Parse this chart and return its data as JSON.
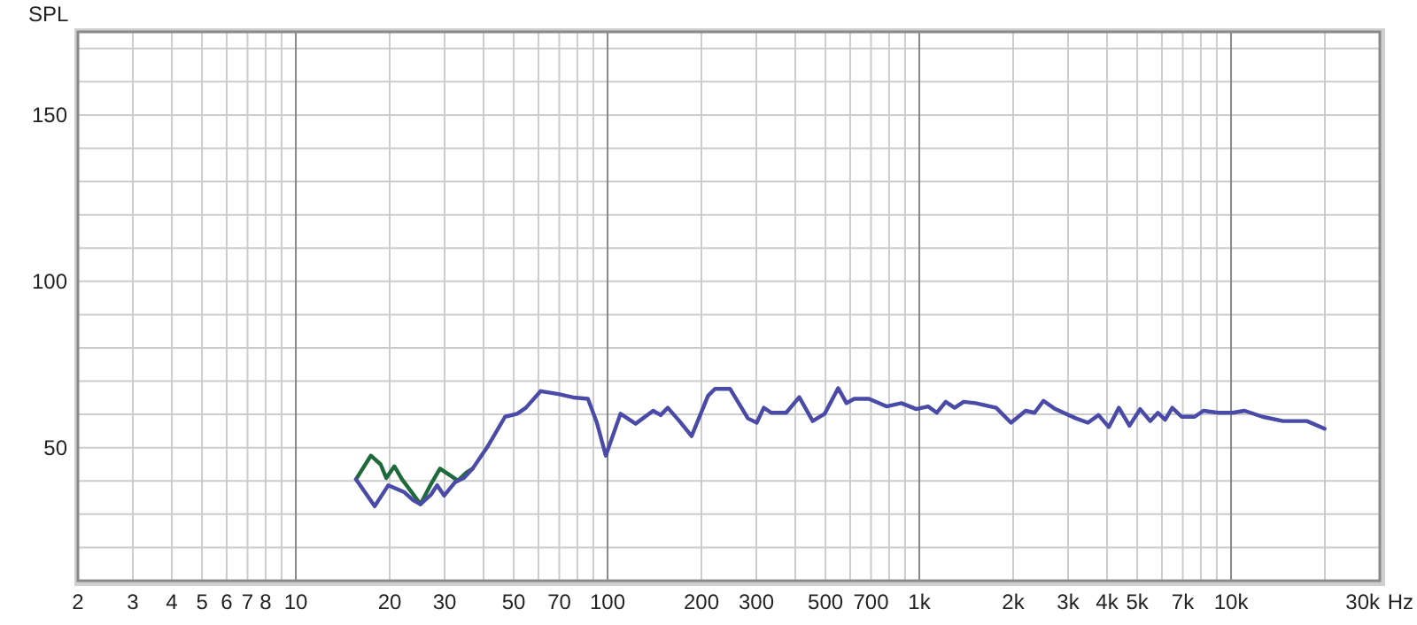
{
  "chart_data": {
    "type": "line",
    "ylabel": "SPL",
    "log": "x",
    "grid": true,
    "xlabel": "Hz",
    "marker": "none",
    "line_style": "solid",
    "xlim": [
      2,
      30000
    ],
    "ylim": [
      10,
      175
    ],
    "xticks": [
      2,
      3,
      4,
      5,
      6,
      7,
      8,
      {
        "value": 9,
        "label": null
      },
      10,
      20,
      30,
      {
        "value": 40,
        "label": null
      },
      50,
      {
        "value": 60,
        "label": null
      },
      70,
      {
        "value": 80,
        "label": null
      },
      {
        "value": 90,
        "label": null
      },
      100,
      200,
      300,
      {
        "value": 400,
        "label": null
      },
      500,
      {
        "value": 600,
        "label": null
      },
      700,
      {
        "value": 800,
        "label": null
      },
      {
        "value": 900,
        "label": null
      },
      {
        "value": 1000,
        "label": "1k"
      },
      {
        "value": 2000,
        "label": "2k"
      },
      {
        "value": 3000,
        "label": "3k"
      },
      {
        "value": 4000,
        "label": "4k"
      },
      {
        "value": 5000,
        "label": "5k"
      },
      {
        "value": 6000,
        "label": null
      },
      {
        "value": 7000,
        "label": "7k"
      },
      {
        "value": 8000,
        "label": null
      },
      {
        "value": 9000,
        "label": null
      },
      {
        "value": 10000,
        "label": "10k"
      },
      {
        "value": 20000,
        "label": null
      },
      {
        "value": 30000,
        "label": "30k"
      }
    ],
    "yticks": [
      {
        "value": 20,
        "label": null
      },
      {
        "value": 30,
        "label": null
      },
      {
        "value": 40,
        "label": null
      },
      50,
      {
        "value": 60,
        "label": null
      },
      {
        "value": 70,
        "label": null
      },
      {
        "value": 80,
        "label": null
      },
      {
        "value": 90,
        "label": null
      },
      100,
      {
        "value": 110,
        "label": null
      },
      {
        "value": 120,
        "label": null
      },
      {
        "value": 130,
        "label": null
      },
      {
        "value": 140,
        "label": null
      },
      150,
      {
        "value": 160,
        "label": null
      },
      {
        "value": 170,
        "label": null
      }
    ],
    "series": [
      {
        "color": "#1f6a3a",
        "x": [
          15.6,
          17.4,
          18.7,
          19.5,
          20.7,
          21.9,
          23.8,
          25.1,
          27,
          29,
          31,
          33.1,
          35.3,
          36.9
        ],
        "values": [
          40.5,
          47.6,
          45,
          40.9,
          44.4,
          40.5,
          36,
          33,
          38.7,
          43.7,
          41.9,
          40.1,
          42.6,
          43.7
        ]
      },
      {
        "color": "#4a4aa8",
        "x": [
          15.6,
          17.9,
          19.8,
          22.3,
          23.8,
          25.1,
          27.2,
          28.4,
          29.9,
          32.4,
          34.6,
          36.9,
          41.2,
          46.9,
          51.3,
          54.7,
          61,
          69.5,
          77.6,
          86.5,
          92.4,
          98.7,
          110,
          123,
          140,
          148,
          156,
          170,
          186,
          210,
          221,
          247,
          282,
          301,
          317,
          335,
          374,
          412,
          455,
          497,
          549,
          584,
          618,
          689,
          785,
          876,
          978,
          1067,
          1138,
          1215,
          1298,
          1387,
          1514,
          1764,
          1968,
          2193,
          2342,
          2502,
          2730,
          3183,
          3473,
          3758,
          4052,
          4366,
          4723,
          5108,
          5503,
          5826,
          6144,
          6477,
          6939,
          7640,
          8155,
          9100,
          10120,
          11050,
          12600,
          14680,
          17500,
          19950
        ],
        "values": [
          40.5,
          32.4,
          38.7,
          36.6,
          34.2,
          33,
          36,
          38.7,
          35.6,
          39.6,
          40.9,
          43.7,
          50.3,
          59.3,
          60.2,
          62,
          67,
          66.1,
          65.1,
          64.7,
          57.5,
          47.6,
          60.2,
          57.2,
          61.1,
          59.8,
          62,
          58,
          53.5,
          65.6,
          67.7,
          67.7,
          58.8,
          57.5,
          62,
          60.5,
          60.5,
          65.2,
          58,
          60.2,
          67.9,
          63.4,
          64.7,
          64.7,
          62.4,
          63.4,
          61.6,
          62.4,
          60.5,
          63.8,
          62,
          63.8,
          63.4,
          62,
          57.5,
          61.1,
          60.5,
          64.1,
          61.6,
          58.8,
          57.5,
          59.8,
          56.2,
          62,
          56.6,
          61.6,
          58,
          60.5,
          58.4,
          62,
          59.3,
          59.3,
          61.1,
          60.5,
          60.5,
          61.1,
          59.3,
          58,
          58,
          55.7
        ]
      }
    ]
  }
}
